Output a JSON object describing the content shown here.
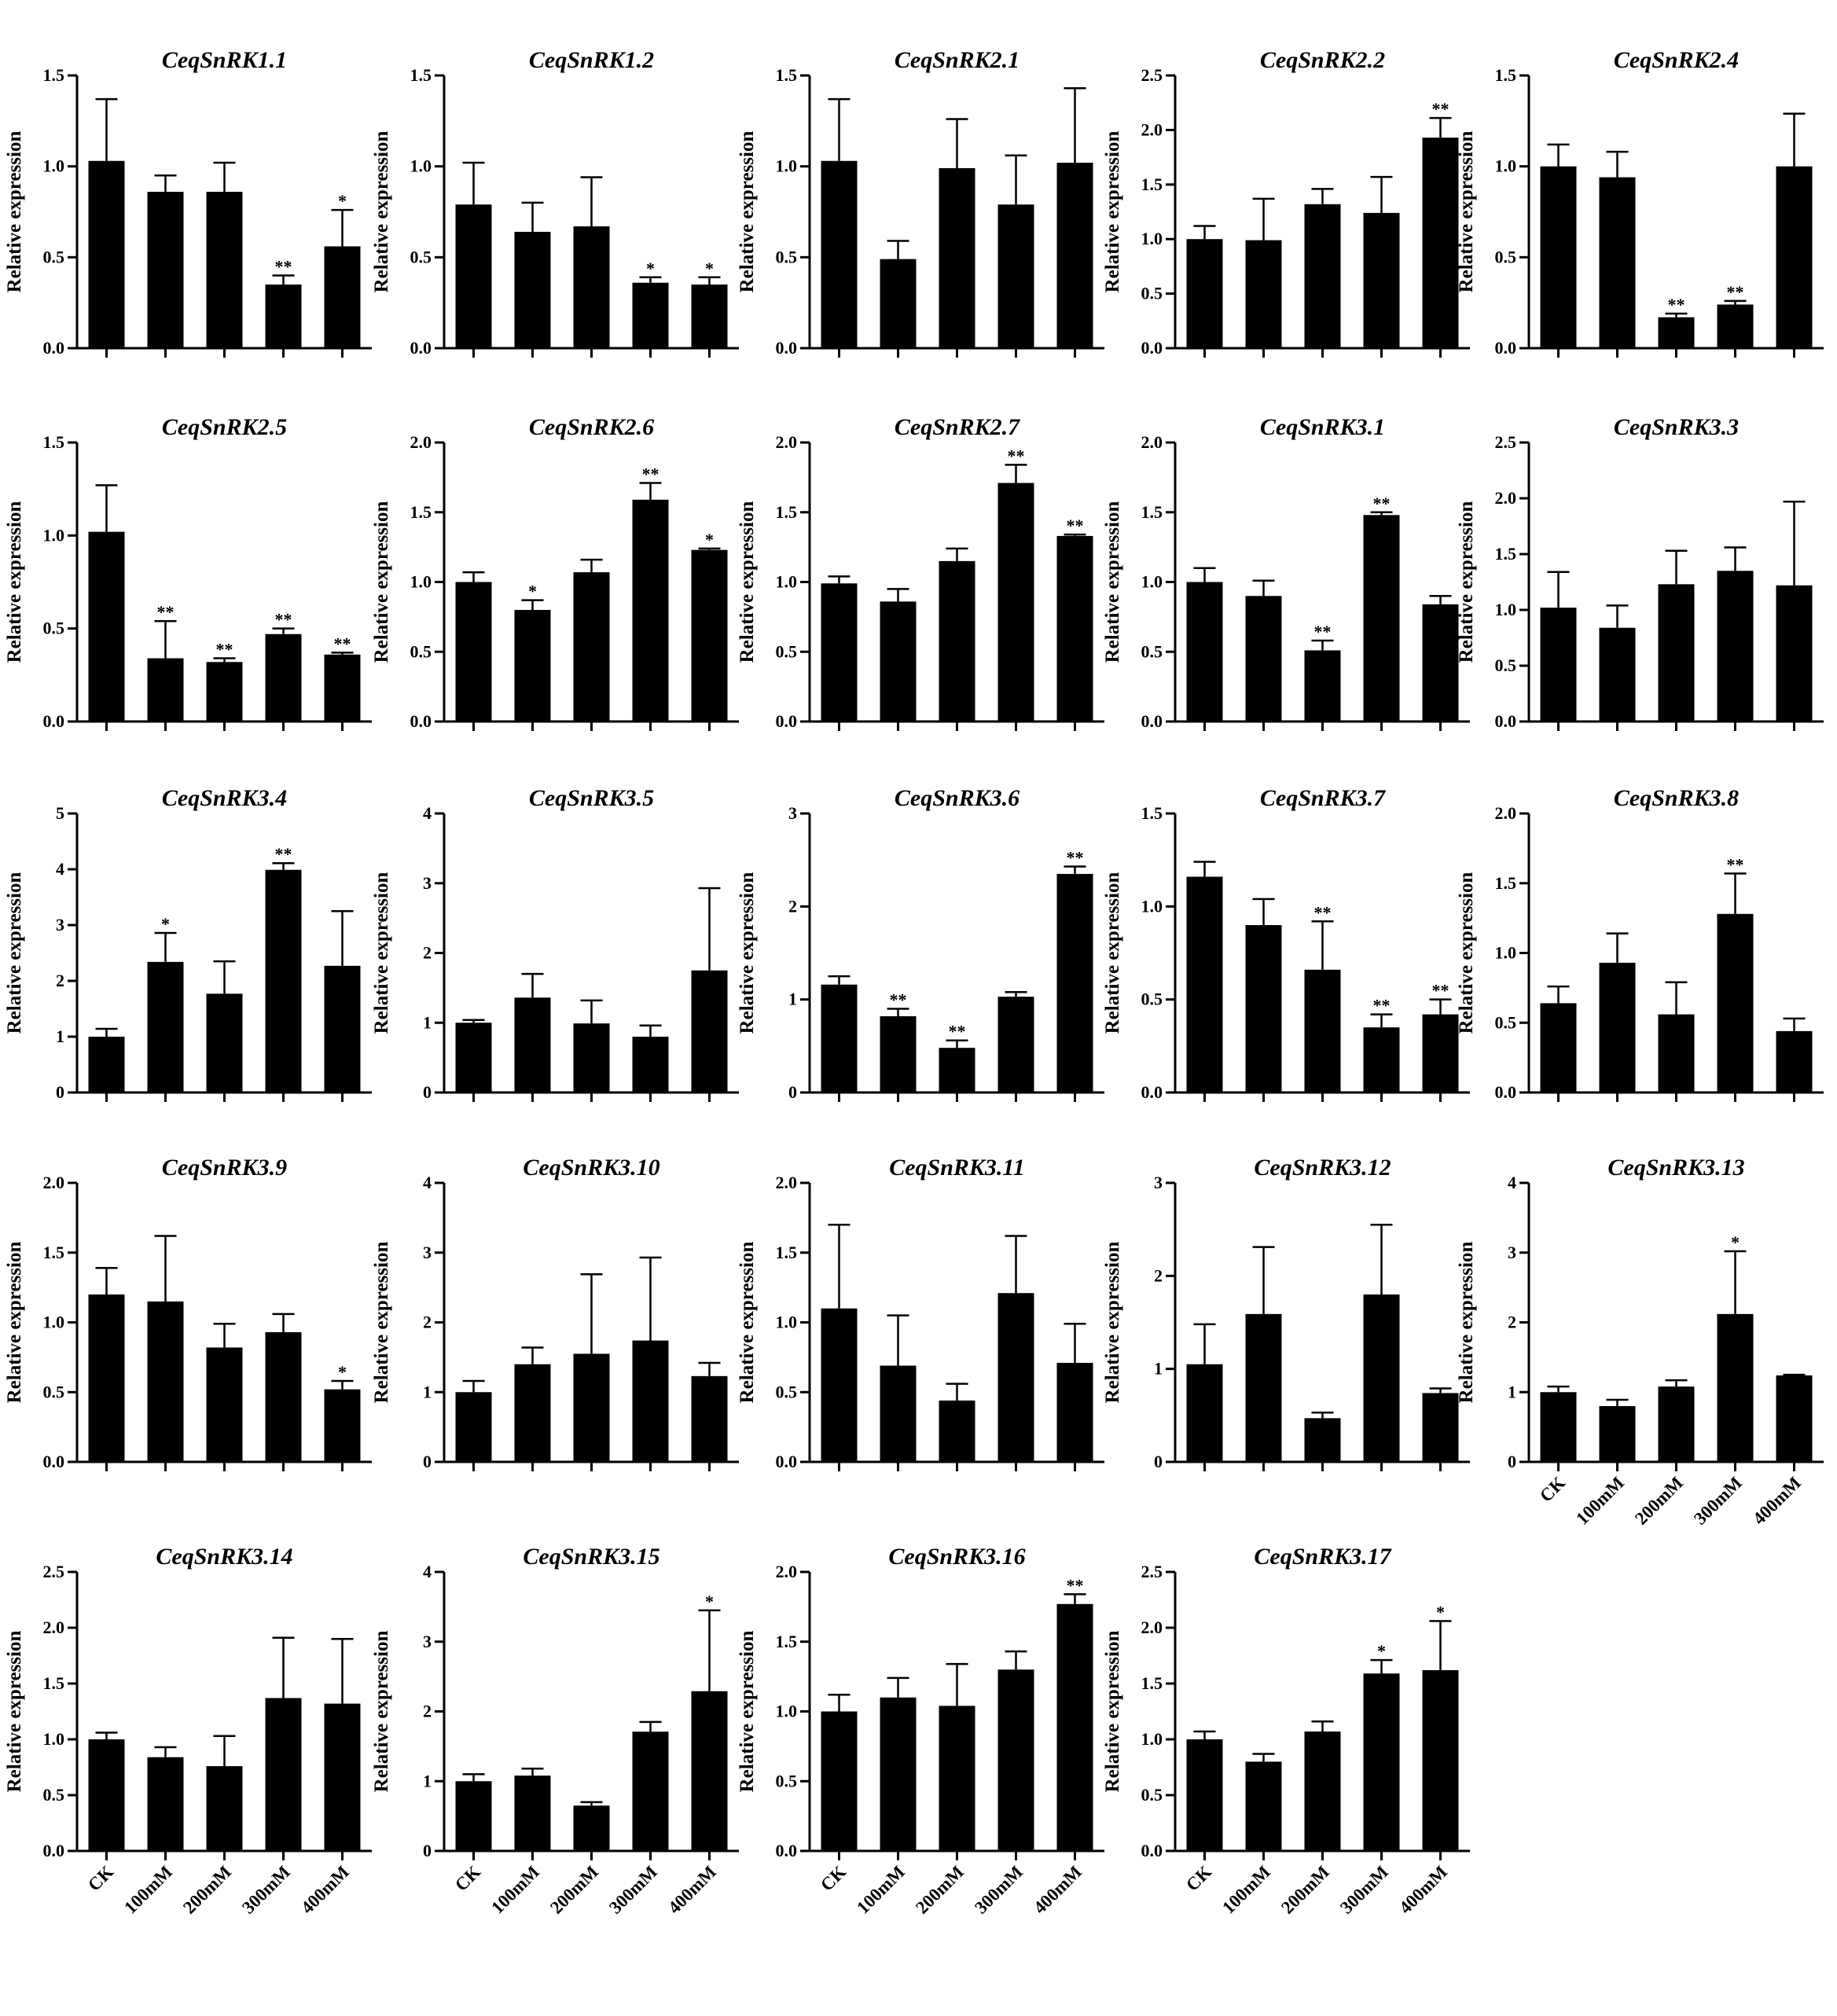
{
  "figure": {
    "ylabel": "Relative expression",
    "categories": [
      "CK",
      "100mM",
      "200mM",
      "300mM",
      "400mM"
    ]
  },
  "chart_data": [
    {
      "type": "bar",
      "title": "CeqSnRK1.1",
      "ylim": [
        0,
        1.5
      ],
      "yticks": [
        "0.0",
        "0.5",
        "1.0",
        "1.5"
      ],
      "values": [
        1.03,
        0.86,
        0.86,
        0.35,
        0.56
      ],
      "errors": [
        0.34,
        0.09,
        0.16,
        0.05,
        0.2
      ],
      "significance": [
        "",
        "",
        "",
        "**",
        "*"
      ]
    },
    {
      "type": "bar",
      "title": "CeqSnRK1.2",
      "ylim": [
        0,
        1.5
      ],
      "yticks": [
        "0.0",
        "0.5",
        "1.0",
        "1.5"
      ],
      "values": [
        0.79,
        0.64,
        0.67,
        0.36,
        0.35
      ],
      "errors": [
        0.23,
        0.16,
        0.27,
        0.03,
        0.04
      ],
      "significance": [
        "",
        "",
        "",
        "*",
        "*"
      ]
    },
    {
      "type": "bar",
      "title": "CeqSnRK2.1",
      "ylim": [
        0,
        1.5
      ],
      "yticks": [
        "0.0",
        "0.5",
        "1.0",
        "1.5"
      ],
      "values": [
        1.03,
        0.49,
        0.99,
        0.79,
        1.02
      ],
      "errors": [
        0.34,
        0.1,
        0.27,
        0.27,
        0.41
      ],
      "significance": [
        "",
        "",
        "",
        "",
        ""
      ]
    },
    {
      "type": "bar",
      "title": "CeqSnRK2.2",
      "ylim": [
        0,
        2.5
      ],
      "yticks": [
        "0.0",
        "0.5",
        "1.0",
        "1.5",
        "2.0",
        "2.5"
      ],
      "values": [
        1.0,
        0.99,
        1.32,
        1.24,
        1.93
      ],
      "errors": [
        0.12,
        0.38,
        0.14,
        0.33,
        0.18
      ],
      "significance": [
        "",
        "",
        "",
        "",
        "**"
      ]
    },
    {
      "type": "bar",
      "title": "CeqSnRK2.4",
      "ylim": [
        0,
        1.5
      ],
      "yticks": [
        "0.0",
        "0.5",
        "1.0",
        "1.5"
      ],
      "values": [
        1.0,
        0.94,
        0.17,
        0.24,
        1.0
      ],
      "errors": [
        0.12,
        0.14,
        0.02,
        0.02,
        0.29
      ],
      "significance": [
        "",
        "",
        "**",
        "**",
        ""
      ]
    },
    {
      "type": "bar",
      "title": "CeqSnRK2.5",
      "ylim": [
        0,
        1.5
      ],
      "yticks": [
        "0.0",
        "0.5",
        "1.0",
        "1.5"
      ],
      "values": [
        1.02,
        0.34,
        0.32,
        0.47,
        0.36
      ],
      "errors": [
        0.25,
        0.2,
        0.02,
        0.03,
        0.01
      ],
      "significance": [
        "",
        "**",
        "**",
        "**",
        "**"
      ]
    },
    {
      "type": "bar",
      "title": "CeqSnRK2.6",
      "ylim": [
        0,
        2.0
      ],
      "yticks": [
        "0.0",
        "0.5",
        "1.0",
        "1.5",
        "2.0"
      ],
      "values": [
        1.0,
        0.8,
        1.07,
        1.59,
        1.23
      ],
      "errors": [
        0.07,
        0.07,
        0.09,
        0.12,
        0.01
      ],
      "significance": [
        "",
        "*",
        "",
        "**",
        "*"
      ]
    },
    {
      "type": "bar",
      "title": "CeqSnRK2.7",
      "ylim": [
        0,
        2.0
      ],
      "yticks": [
        "0.0",
        "0.5",
        "1.0",
        "1.5",
        "2.0"
      ],
      "values": [
        0.99,
        0.86,
        1.15,
        1.71,
        1.33
      ],
      "errors": [
        0.05,
        0.09,
        0.09,
        0.13,
        0.01
      ],
      "significance": [
        "",
        "",
        "",
        "**",
        "**"
      ]
    },
    {
      "type": "bar",
      "title": "CeqSnRK3.1",
      "ylim": [
        0,
        2.0
      ],
      "yticks": [
        "0.0",
        "0.5",
        "1.0",
        "1.5",
        "2.0"
      ],
      "values": [
        1.0,
        0.9,
        0.51,
        1.48,
        0.84
      ],
      "errors": [
        0.1,
        0.11,
        0.07,
        0.02,
        0.06
      ],
      "significance": [
        "",
        "",
        "**",
        "**",
        ""
      ]
    },
    {
      "type": "bar",
      "title": "CeqSnRK3.3",
      "ylim": [
        0,
        2.5
      ],
      "yticks": [
        "0.0",
        "0.5",
        "1.0",
        "1.5",
        "2.0",
        "2.5"
      ],
      "values": [
        1.02,
        0.84,
        1.23,
        1.35,
        1.22
      ],
      "errors": [
        0.32,
        0.2,
        0.3,
        0.21,
        0.75
      ],
      "significance": [
        "",
        "",
        "",
        "",
        ""
      ]
    },
    {
      "type": "bar",
      "title": "CeqSnRK3.4",
      "ylim": [
        0,
        5
      ],
      "yticks": [
        "0",
        "1",
        "2",
        "3",
        "4",
        "5"
      ],
      "values": [
        1.0,
        2.34,
        1.77,
        3.99,
        2.27
      ],
      "errors": [
        0.14,
        0.52,
        0.58,
        0.12,
        0.98
      ],
      "significance": [
        "",
        "*",
        "",
        "**",
        ""
      ]
    },
    {
      "type": "bar",
      "title": "CeqSnRK3.5",
      "ylim": [
        0,
        4
      ],
      "yticks": [
        "0",
        "1",
        "2",
        "3",
        "4"
      ],
      "values": [
        1.0,
        1.36,
        0.99,
        0.8,
        1.75
      ],
      "errors": [
        0.04,
        0.34,
        0.33,
        0.16,
        1.18
      ],
      "significance": [
        "",
        "",
        "",
        "",
        ""
      ]
    },
    {
      "type": "bar",
      "title": "CeqSnRK3.6",
      "ylim": [
        0,
        3
      ],
      "yticks": [
        "0",
        "1",
        "2",
        "3"
      ],
      "values": [
        1.16,
        0.82,
        0.48,
        1.03,
        2.35
      ],
      "errors": [
        0.09,
        0.08,
        0.08,
        0.05,
        0.08
      ],
      "significance": [
        "",
        "**",
        "**",
        "",
        "**"
      ]
    },
    {
      "type": "bar",
      "title": "CeqSnRK3.7",
      "ylim": [
        0,
        1.5
      ],
      "yticks": [
        "0.0",
        "0.5",
        "1.0",
        "1.5"
      ],
      "values": [
        1.16,
        0.9,
        0.66,
        0.35,
        0.42
      ],
      "errors": [
        0.08,
        0.14,
        0.26,
        0.07,
        0.08
      ],
      "significance": [
        "",
        "",
        "**",
        "**",
        "**"
      ]
    },
    {
      "type": "bar",
      "title": "CeqSnRK3.8",
      "ylim": [
        0,
        2.0
      ],
      "yticks": [
        "0.0",
        "0.5",
        "1.0",
        "1.5",
        "2.0"
      ],
      "values": [
        0.64,
        0.93,
        0.56,
        1.28,
        0.44
      ],
      "errors": [
        0.12,
        0.21,
        0.23,
        0.29,
        0.09
      ],
      "significance": [
        "",
        "",
        "",
        "**",
        ""
      ]
    },
    {
      "type": "bar",
      "title": "CeqSnRK3.9",
      "ylim": [
        0,
        2.0
      ],
      "yticks": [
        "0.0",
        "0.5",
        "1.0",
        "1.5",
        "2.0"
      ],
      "values": [
        1.2,
        1.15,
        0.82,
        0.93,
        0.52
      ],
      "errors": [
        0.19,
        0.47,
        0.17,
        0.13,
        0.06
      ],
      "significance": [
        "",
        "",
        "",
        "",
        "*"
      ]
    },
    {
      "type": "bar",
      "title": "CeqSnRK3.10",
      "ylim": [
        0,
        4
      ],
      "yticks": [
        "0",
        "1",
        "2",
        "3",
        "4"
      ],
      "values": [
        1.0,
        1.4,
        1.55,
        1.74,
        1.23
      ],
      "errors": [
        0.16,
        0.24,
        1.14,
        1.19,
        0.19
      ],
      "significance": [
        "",
        "",
        "",
        "",
        ""
      ]
    },
    {
      "type": "bar",
      "title": "CeqSnRK3.11",
      "ylim": [
        0,
        2.0
      ],
      "yticks": [
        "0.0",
        "0.5",
        "1.0",
        "1.5",
        "2.0"
      ],
      "values": [
        1.1,
        0.69,
        0.44,
        1.21,
        0.71
      ],
      "errors": [
        0.6,
        0.36,
        0.12,
        0.41,
        0.28
      ],
      "significance": [
        "",
        "",
        "",
        "",
        ""
      ]
    },
    {
      "type": "bar",
      "title": "CeqSnRK3.12",
      "ylim": [
        0,
        3
      ],
      "yticks": [
        "0",
        "1",
        "2",
        "3"
      ],
      "values": [
        1.05,
        1.59,
        0.47,
        1.8,
        0.74
      ],
      "errors": [
        0.43,
        0.72,
        0.06,
        0.75,
        0.05
      ],
      "significance": [
        "",
        "",
        "",
        "",
        ""
      ]
    },
    {
      "type": "bar",
      "title": "CeqSnRK3.13",
      "ylim": [
        0,
        4
      ],
      "yticks": [
        "0",
        "1",
        "2",
        "3",
        "4"
      ],
      "values": [
        1.0,
        0.8,
        1.08,
        2.12,
        1.24
      ],
      "errors": [
        0.08,
        0.09,
        0.09,
        0.9,
        0.01
      ],
      "significance": [
        "",
        "",
        "",
        "*",
        ""
      ]
    },
    {
      "type": "bar",
      "title": "CeqSnRK3.14",
      "ylim": [
        0,
        2.5
      ],
      "yticks": [
        "0.0",
        "0.5",
        "1.0",
        "1.5",
        "2.0",
        "2.5"
      ],
      "values": [
        1.0,
        0.84,
        0.76,
        1.37,
        1.32
      ],
      "errors": [
        0.06,
        0.09,
        0.27,
        0.54,
        0.58
      ],
      "significance": [
        "",
        "",
        "",
        "",
        ""
      ]
    },
    {
      "type": "bar",
      "title": "CeqSnRK3.15",
      "ylim": [
        0,
        4
      ],
      "yticks": [
        "0",
        "1",
        "2",
        "3",
        "4"
      ],
      "values": [
        1.0,
        1.08,
        0.65,
        1.71,
        2.29
      ],
      "errors": [
        0.1,
        0.1,
        0.05,
        0.14,
        1.16
      ],
      "significance": [
        "",
        "",
        "",
        "",
        "*"
      ]
    },
    {
      "type": "bar",
      "title": "CeqSnRK3.16",
      "ylim": [
        0,
        2.0
      ],
      "yticks": [
        "0.0",
        "0.5",
        "1.0",
        "1.5",
        "2.0"
      ],
      "values": [
        1.0,
        1.1,
        1.04,
        1.3,
        1.77
      ],
      "errors": [
        0.12,
        0.14,
        0.3,
        0.13,
        0.07
      ],
      "significance": [
        "",
        "",
        "",
        "",
        "**"
      ]
    },
    {
      "type": "bar",
      "title": "CeqSnRK3.17",
      "ylim": [
        0,
        2.5
      ],
      "yticks": [
        "0.0",
        "0.5",
        "1.0",
        "1.5",
        "2.0",
        "2.5"
      ],
      "values": [
        1.0,
        0.8,
        1.07,
        1.59,
        1.62
      ],
      "errors": [
        0.07,
        0.07,
        0.09,
        0.12,
        0.44
      ],
      "significance": [
        "",
        "",
        "",
        "*",
        "*"
      ]
    }
  ]
}
